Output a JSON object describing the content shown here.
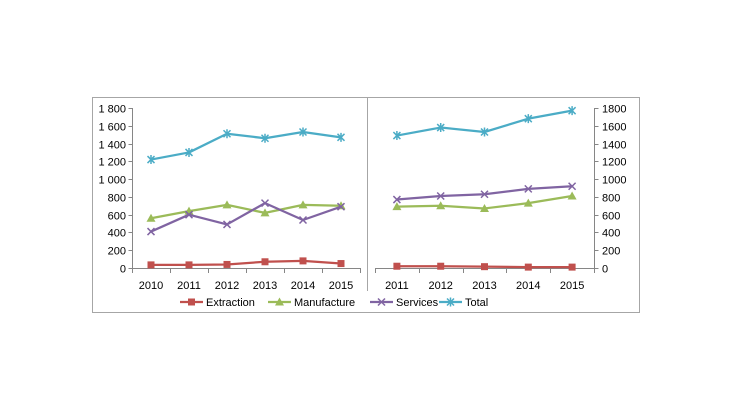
{
  "chart_data": [
    {
      "type": "line",
      "yaxis_side": "left",
      "grid": false,
      "legend": "bottom",
      "categories": [
        "2010",
        "2011",
        "2012",
        "2013",
        "2014",
        "2015"
      ],
      "ylim": [
        0,
        1800
      ],
      "yticks": [
        0,
        200,
        400,
        600,
        800,
        1000,
        1200,
        1400,
        1600,
        1800
      ],
      "ytick_labels": [
        "0",
        "200",
        "400",
        "600",
        "800",
        "1 000",
        "1 200",
        "1 400",
        "1 600",
        "1 800"
      ],
      "series": [
        {
          "name": "Extraction",
          "color": "#C0504D",
          "marker": "square",
          "values": [
            35,
            35,
            40,
            70,
            80,
            50
          ]
        },
        {
          "name": "Manufacture",
          "color": "#9BBB59",
          "marker": "triangle",
          "values": [
            560,
            640,
            710,
            620,
            710,
            700
          ]
        },
        {
          "name": "Services",
          "color": "#8064A2",
          "marker": "cross",
          "values": [
            410,
            600,
            490,
            730,
            540,
            690
          ]
        },
        {
          "name": "Total",
          "color": "#4BACC6",
          "marker": "star",
          "values": [
            1220,
            1300,
            1510,
            1460,
            1530,
            1470
          ]
        }
      ]
    },
    {
      "type": "line",
      "yaxis_side": "right",
      "grid": false,
      "categories": [
        "2011",
        "2012",
        "2013",
        "2014",
        "2015"
      ],
      "ylim": [
        0,
        1800
      ],
      "yticks": [
        0,
        200,
        400,
        600,
        800,
        1000,
        1200,
        1400,
        1600,
        1800
      ],
      "ytick_labels": [
        "0",
        "200",
        "400",
        "600",
        "800",
        "1000",
        "1200",
        "1400",
        "1600",
        "1800"
      ],
      "series": [
        {
          "name": "Extraction",
          "color": "#C0504D",
          "marker": "square",
          "values": [
            20,
            20,
            15,
            10,
            10
          ]
        },
        {
          "name": "Manufacture",
          "color": "#9BBB59",
          "marker": "triangle",
          "values": [
            690,
            700,
            670,
            730,
            810
          ]
        },
        {
          "name": "Services",
          "color": "#8064A2",
          "marker": "cross",
          "values": [
            770,
            810,
            830,
            890,
            920
          ]
        },
        {
          "name": "Total",
          "color": "#4BACC6",
          "marker": "star",
          "values": [
            1490,
            1580,
            1530,
            1680,
            1770
          ]
        }
      ]
    }
  ]
}
